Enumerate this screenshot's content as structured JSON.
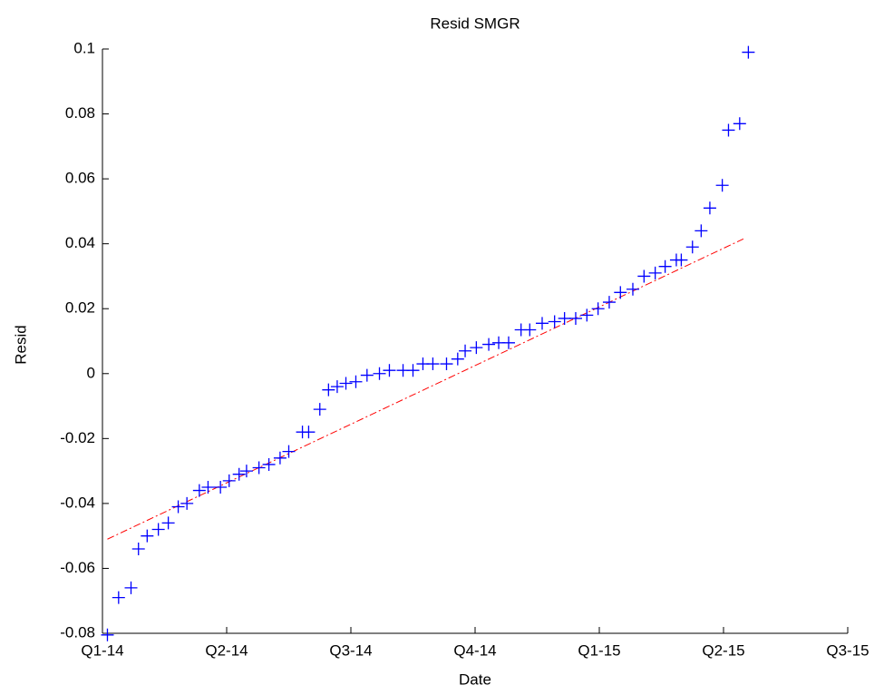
{
  "chart_data": {
    "type": "scatter",
    "title": "Resid SMGR",
    "xlabel": "Date",
    "ylabel": "Resid",
    "xlim": [
      0,
      6
    ],
    "ylim": [
      -0.08,
      0.1
    ],
    "xticks": [
      {
        "value": 0,
        "label": "Q1-14"
      },
      {
        "value": 1,
        "label": "Q2-14"
      },
      {
        "value": 2,
        "label": "Q3-14"
      },
      {
        "value": 3,
        "label": "Q4-14"
      },
      {
        "value": 4,
        "label": "Q1-15"
      },
      {
        "value": 5,
        "label": "Q2-15"
      },
      {
        "value": 6,
        "label": "Q3-15"
      }
    ],
    "yticks": [
      0.1,
      0.08,
      0.06,
      0.04,
      0.02,
      0,
      -0.02,
      -0.04,
      -0.06,
      -0.08
    ],
    "series": [
      {
        "color": "#0000ff",
        "marker": "+",
        "x": [
          0.04,
          0.13,
          0.23,
          0.29,
          0.36,
          0.45,
          0.53,
          0.61,
          0.68,
          0.78,
          0.85,
          0.95,
          1.02,
          1.1,
          1.16,
          1.26,
          1.34,
          1.43,
          1.5,
          1.61,
          1.66,
          1.75,
          1.82,
          1.89,
          1.96,
          2.04,
          2.13,
          2.23,
          2.31,
          2.42,
          2.5,
          2.58,
          2.66,
          2.77,
          2.86,
          2.92,
          3.01,
          3.11,
          3.19,
          3.27,
          3.37,
          3.44,
          3.54,
          3.64,
          3.72,
          3.81,
          3.9,
          3.99,
          4.08,
          4.17,
          4.27,
          4.36,
          4.45,
          4.53,
          4.62,
          4.66,
          4.75,
          4.82,
          4.89,
          4.99,
          5.04,
          5.13,
          5.2
        ],
        "values": [
          -0.0805,
          -0.069,
          -0.066,
          -0.054,
          -0.05,
          -0.048,
          -0.046,
          -0.041,
          -0.04,
          -0.036,
          -0.035,
          -0.035,
          -0.033,
          -0.031,
          -0.03,
          -0.029,
          -0.028,
          -0.026,
          -0.024,
          -0.018,
          -0.018,
          -0.011,
          -0.005,
          -0.004,
          -0.003,
          -0.0025,
          -0.0005,
          0,
          0.001,
          0.001,
          0.001,
          0.003,
          0.003,
          0.003,
          0.0045,
          0.007,
          0.008,
          0.009,
          0.0095,
          0.0095,
          0.0135,
          0.0135,
          0.0155,
          0.016,
          0.017,
          0.017,
          0.018,
          0.02,
          0.022,
          0.025,
          0.026,
          0.03,
          0.031,
          0.033,
          0.035,
          0.035,
          0.039,
          0.044,
          0.051,
          0.058,
          0.075,
          0.077,
          0.099
        ]
      }
    ],
    "fit_line": {
      "color": "#ff0000",
      "style": "dashdot",
      "x": [
        0.04,
        5.16
      ],
      "values": [
        -0.051,
        0.0415
      ]
    }
  }
}
